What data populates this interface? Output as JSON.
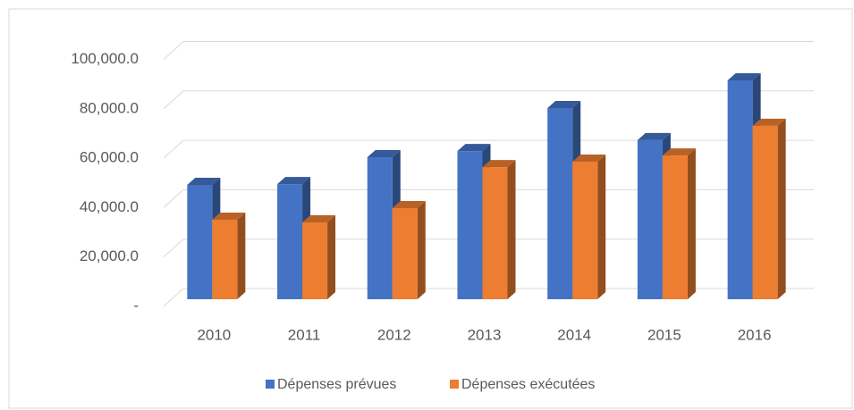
{
  "chart_data": {
    "type": "bar3d",
    "categories": [
      "2010",
      "2011",
      "2012",
      "2013",
      "2014",
      "2015",
      "2016"
    ],
    "series": [
      {
        "name": "Dépenses prévues",
        "color": "#4472c4",
        "values": [
          46300,
          46600,
          57500,
          60000,
          77400,
          64400,
          88600
        ]
      },
      {
        "name": "Dépenses exécutées",
        "color": "#ed7d31",
        "values": [
          32200,
          31100,
          36900,
          53500,
          55700,
          58200,
          70200
        ]
      }
    ],
    "ylim": [
      0,
      100000
    ],
    "yticks": [
      {
        "value": 0,
        "label": "-"
      },
      {
        "value": 20000,
        "label": "20,000.0"
      },
      {
        "value": 40000,
        "label": "40,000.0"
      },
      {
        "value": 60000,
        "label": "60,000.0"
      },
      {
        "value": 80000,
        "label": "80,000.0"
      },
      {
        "value": 100000,
        "label": "100,000.0"
      }
    ],
    "grid": true,
    "legend": "bottom"
  }
}
